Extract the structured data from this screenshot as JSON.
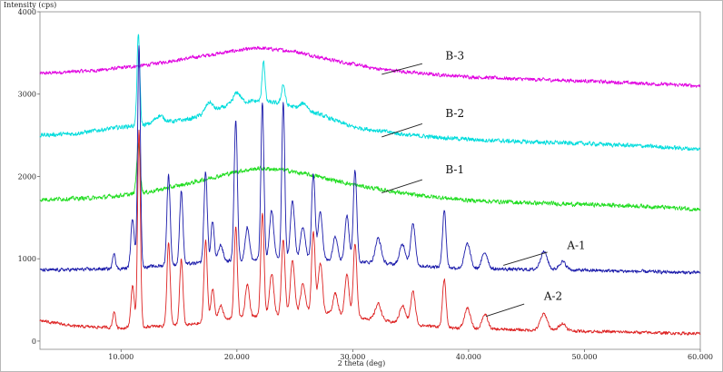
{
  "chart_data": {
    "type": "line",
    "title": "",
    "xlabel": "2 theta (deg)",
    "ylabel": "Intensity (cps)",
    "xlim": [
      3,
      60
    ],
    "ylim": [
      -100,
      4000
    ],
    "x_ticks": [
      10,
      20,
      30,
      40,
      50,
      60
    ],
    "x_tick_labels": [
      "10.000",
      "20.000",
      "30.000",
      "40.000",
      "50.000",
      "60.000"
    ],
    "y_ticks": [
      0,
      1000,
      2000,
      3000,
      4000
    ],
    "y_tick_labels": [
      "0",
      "1000",
      "2000",
      "3000",
      "4000"
    ],
    "grid": false,
    "legend": "none",
    "series": [
      {
        "name": "B-3",
        "color": "#e000e0",
        "noise": 30,
        "baseline": [
          [
            3,
            3250
          ],
          [
            8,
            3290
          ],
          [
            12,
            3350
          ],
          [
            16,
            3440
          ],
          [
            20,
            3530
          ],
          [
            22,
            3560
          ],
          [
            25,
            3520
          ],
          [
            28,
            3420
          ],
          [
            32,
            3310
          ],
          [
            36,
            3250
          ],
          [
            40,
            3210
          ],
          [
            45,
            3180
          ],
          [
            50,
            3160
          ],
          [
            55,
            3130
          ],
          [
            60,
            3100
          ]
        ],
        "peaks": [],
        "label": "B-3",
        "label_at": [
          38,
          3420
        ],
        "pointer_from": [
          36,
          3370
        ],
        "pointer_to": [
          32.5,
          3240
        ]
      },
      {
        "name": "B-2",
        "color": "#00dcdc",
        "noise": 35,
        "baseline": [
          [
            3,
            2500
          ],
          [
            6,
            2520
          ],
          [
            8,
            2560
          ],
          [
            10,
            2600
          ],
          [
            13,
            2640
          ],
          [
            16,
            2700
          ],
          [
            18,
            2800
          ],
          [
            20,
            2900
          ],
          [
            22,
            2920
          ],
          [
            24,
            2880
          ],
          [
            27,
            2760
          ],
          [
            30,
            2600
          ],
          [
            35,
            2500
          ],
          [
            40,
            2450
          ],
          [
            45,
            2420
          ],
          [
            50,
            2400
          ],
          [
            55,
            2370
          ],
          [
            60,
            2330
          ]
        ],
        "peaks": [
          [
            11.5,
            1100,
            0.12
          ],
          [
            13.3,
            90,
            0.4
          ],
          [
            17.6,
            120,
            0.3
          ],
          [
            20,
            120,
            0.3
          ],
          [
            22.3,
            500,
            0.12
          ],
          [
            24.0,
            240,
            0.15
          ],
          [
            25.8,
            80,
            0.3
          ]
        ],
        "label": "B-2",
        "label_at": [
          38,
          2720
        ],
        "pointer_from": [
          36,
          2640
        ],
        "pointer_to": [
          32.5,
          2480
        ]
      },
      {
        "name": "B-1",
        "color": "#22dd22",
        "noise": 35,
        "baseline": [
          [
            3,
            1720
          ],
          [
            8,
            1740
          ],
          [
            12,
            1800
          ],
          [
            16,
            1920
          ],
          [
            20,
            2060
          ],
          [
            22,
            2100
          ],
          [
            24,
            2080
          ],
          [
            27,
            2000
          ],
          [
            30,
            1900
          ],
          [
            35,
            1780
          ],
          [
            40,
            1710
          ],
          [
            45,
            1680
          ],
          [
            50,
            1660
          ],
          [
            55,
            1640
          ],
          [
            60,
            1600
          ]
        ],
        "peaks": [
          [
            11.5,
            600,
            0.15
          ]
        ],
        "label": "B-1",
        "label_at": [
          38,
          2040
        ],
        "pointer_from": [
          36,
          1960
        ],
        "pointer_to": [
          32.5,
          1800
        ]
      },
      {
        "name": "A-1",
        "color": "#1a1aaa",
        "noise": 28,
        "baseline": [
          [
            3,
            860
          ],
          [
            10,
            880
          ],
          [
            20,
            980
          ],
          [
            25,
            1000
          ],
          [
            30,
            970
          ],
          [
            35,
            920
          ],
          [
            40,
            880
          ],
          [
            50,
            860
          ],
          [
            60,
            830
          ]
        ],
        "peaks": [
          [
            9.4,
            200,
            0.12
          ],
          [
            11.0,
            600,
            0.15
          ],
          [
            11.55,
            2700,
            0.12
          ],
          [
            14.1,
            1100,
            0.14
          ],
          [
            15.2,
            900,
            0.14
          ],
          [
            17.3,
            1100,
            0.14
          ],
          [
            17.9,
            500,
            0.14
          ],
          [
            18.6,
            200,
            0.2
          ],
          [
            19.9,
            1700,
            0.14
          ],
          [
            20.9,
            400,
            0.18
          ],
          [
            22.2,
            1900,
            0.13
          ],
          [
            23.0,
            600,
            0.18
          ],
          [
            24.0,
            1900,
            0.13
          ],
          [
            24.8,
            700,
            0.18
          ],
          [
            25.7,
            400,
            0.2
          ],
          [
            26.6,
            1050,
            0.15
          ],
          [
            27.2,
            600,
            0.18
          ],
          [
            28.5,
            300,
            0.2
          ],
          [
            29.5,
            550,
            0.18
          ],
          [
            30.2,
            1100,
            0.15
          ],
          [
            32.2,
            300,
            0.25
          ],
          [
            34.3,
            250,
            0.25
          ],
          [
            35.2,
            500,
            0.2
          ],
          [
            37.9,
            700,
            0.15
          ],
          [
            39.9,
            300,
            0.25
          ],
          [
            41.4,
            200,
            0.25
          ],
          [
            46.5,
            220,
            0.3
          ],
          [
            48.1,
            100,
            0.3
          ]
        ],
        "label": "A-1",
        "label_at": [
          48.5,
          1120
        ],
        "pointer_from": [
          46.8,
          1080
        ],
        "pointer_to": [
          43.0,
          920
        ]
      },
      {
        "name": "A-2",
        "color": "#dd2222",
        "noise": 25,
        "baseline": [
          [
            3,
            250
          ],
          [
            6,
            180
          ],
          [
            10,
            160
          ],
          [
            16,
            200
          ],
          [
            20,
            280
          ],
          [
            24,
            330
          ],
          [
            27,
            360
          ],
          [
            30,
            300
          ],
          [
            35,
            200
          ],
          [
            40,
            150
          ],
          [
            50,
            120
          ],
          [
            60,
            90
          ]
        ],
        "peaks": [
          [
            9.4,
            200,
            0.12
          ],
          [
            11.0,
            500,
            0.15
          ],
          [
            11.55,
            2400,
            0.12
          ],
          [
            14.1,
            1000,
            0.14
          ],
          [
            15.2,
            800,
            0.14
          ],
          [
            17.3,
            1000,
            0.14
          ],
          [
            17.9,
            400,
            0.15
          ],
          [
            18.6,
            180,
            0.2
          ],
          [
            19.9,
            1100,
            0.14
          ],
          [
            20.9,
            400,
            0.18
          ],
          [
            22.2,
            1250,
            0.14
          ],
          [
            23.0,
            500,
            0.18
          ],
          [
            24.0,
            900,
            0.15
          ],
          [
            24.8,
            650,
            0.18
          ],
          [
            25.7,
            350,
            0.2
          ],
          [
            26.6,
            980,
            0.15
          ],
          [
            27.2,
            600,
            0.18
          ],
          [
            28.5,
            250,
            0.2
          ],
          [
            29.5,
            500,
            0.18
          ],
          [
            30.2,
            900,
            0.15
          ],
          [
            32.2,
            200,
            0.25
          ],
          [
            34.3,
            220,
            0.25
          ],
          [
            35.2,
            400,
            0.2
          ],
          [
            37.9,
            580,
            0.15
          ],
          [
            39.9,
            250,
            0.25
          ],
          [
            41.4,
            180,
            0.25
          ],
          [
            46.5,
            200,
            0.3
          ],
          [
            48.1,
            90,
            0.3
          ]
        ],
        "label": "A-2",
        "label_at": [
          46.5,
          500
        ],
        "pointer_from": [
          44.8,
          450
        ],
        "pointer_to": [
          41.5,
          300
        ]
      }
    ]
  }
}
